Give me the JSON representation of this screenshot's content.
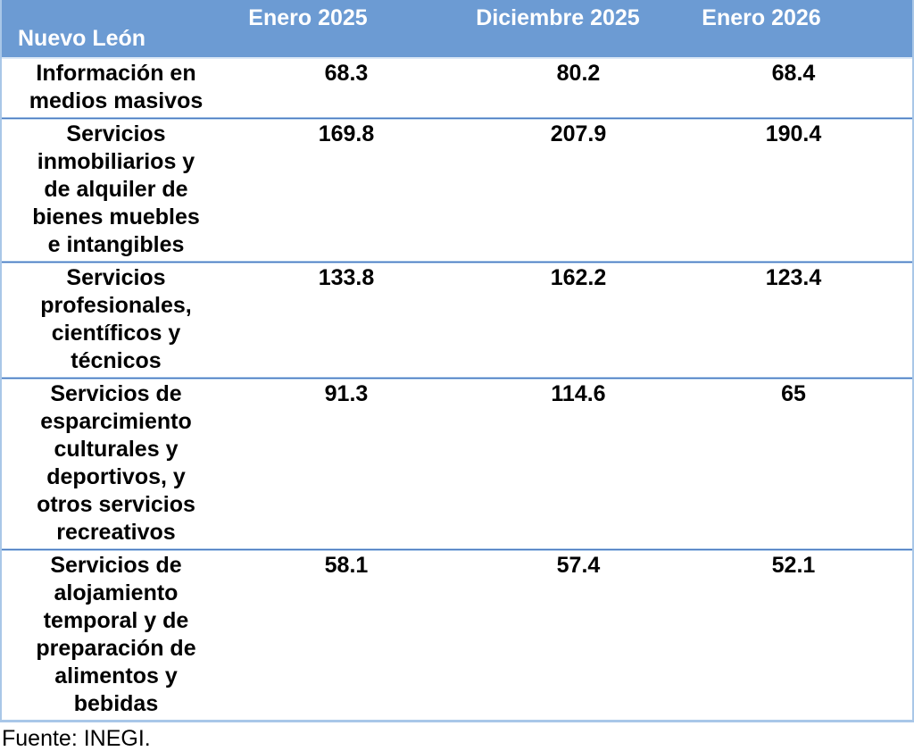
{
  "table": {
    "corner_label": "Nuevo León",
    "columns": [
      "Enero 2025",
      "Diciembre 2025",
      "Enero 2026"
    ],
    "rows": [
      {
        "category_lines": [
          "Información en",
          "medios masivos"
        ],
        "values": [
          "68.3",
          "80.2",
          "68.4"
        ]
      },
      {
        "category_lines": [
          "Servicios",
          "inmobiliarios y",
          "de alquiler de",
          "bienes muebles",
          "e intangibles"
        ],
        "values": [
          "169.8",
          "207.9",
          "190.4"
        ]
      },
      {
        "category_lines": [
          "Servicios",
          "profesionales,",
          "científicos y",
          "técnicos"
        ],
        "values": [
          "133.8",
          "162.2",
          "123.4"
        ]
      },
      {
        "category_lines": [
          "Servicios de",
          "esparcimiento",
          "culturales y",
          "deportivos, y",
          "otros servicios",
          "recreativos"
        ],
        "values": [
          "91.3",
          "114.6",
          "65"
        ]
      },
      {
        "category_lines": [
          "Servicios de",
          "alojamiento",
          "temporal y de",
          "preparación de",
          "alimentos y",
          "bebidas"
        ],
        "values": [
          "58.1",
          "57.4",
          "52.1"
        ]
      }
    ]
  },
  "footer": {
    "source": "Fuente: INEGI."
  },
  "colors": {
    "header_bg": "#6C9BD3",
    "header_text": "#FFFFFF",
    "border_light": "#A9C7E8",
    "divider_dark": "#4475BE"
  },
  "chart_data": {
    "type": "table",
    "title": "Nuevo León",
    "columns": [
      "Enero 2025",
      "Diciembre 2025",
      "Enero 2026"
    ],
    "row_labels": [
      "Información en medios masivos",
      "Servicios inmobiliarios y de alquiler de bienes muebles e intangibles",
      "Servicios profesionales, científicos y técnicos",
      "Servicios de esparcimiento culturales y deportivos, y otros servicios recreativos",
      "Servicios de alojamiento temporal y de preparación de alimentos y bebidas"
    ],
    "series": [
      {
        "name": "Enero 2025",
        "values": [
          68.3,
          169.8,
          133.8,
          91.3,
          58.1
        ]
      },
      {
        "name": "Diciembre 2025",
        "values": [
          80.2,
          207.9,
          162.2,
          114.6,
          57.4
        ]
      },
      {
        "name": "Enero 2026",
        "values": [
          68.4,
          190.4,
          123.4,
          65,
          52.1
        ]
      }
    ],
    "source": "Fuente: INEGI."
  }
}
